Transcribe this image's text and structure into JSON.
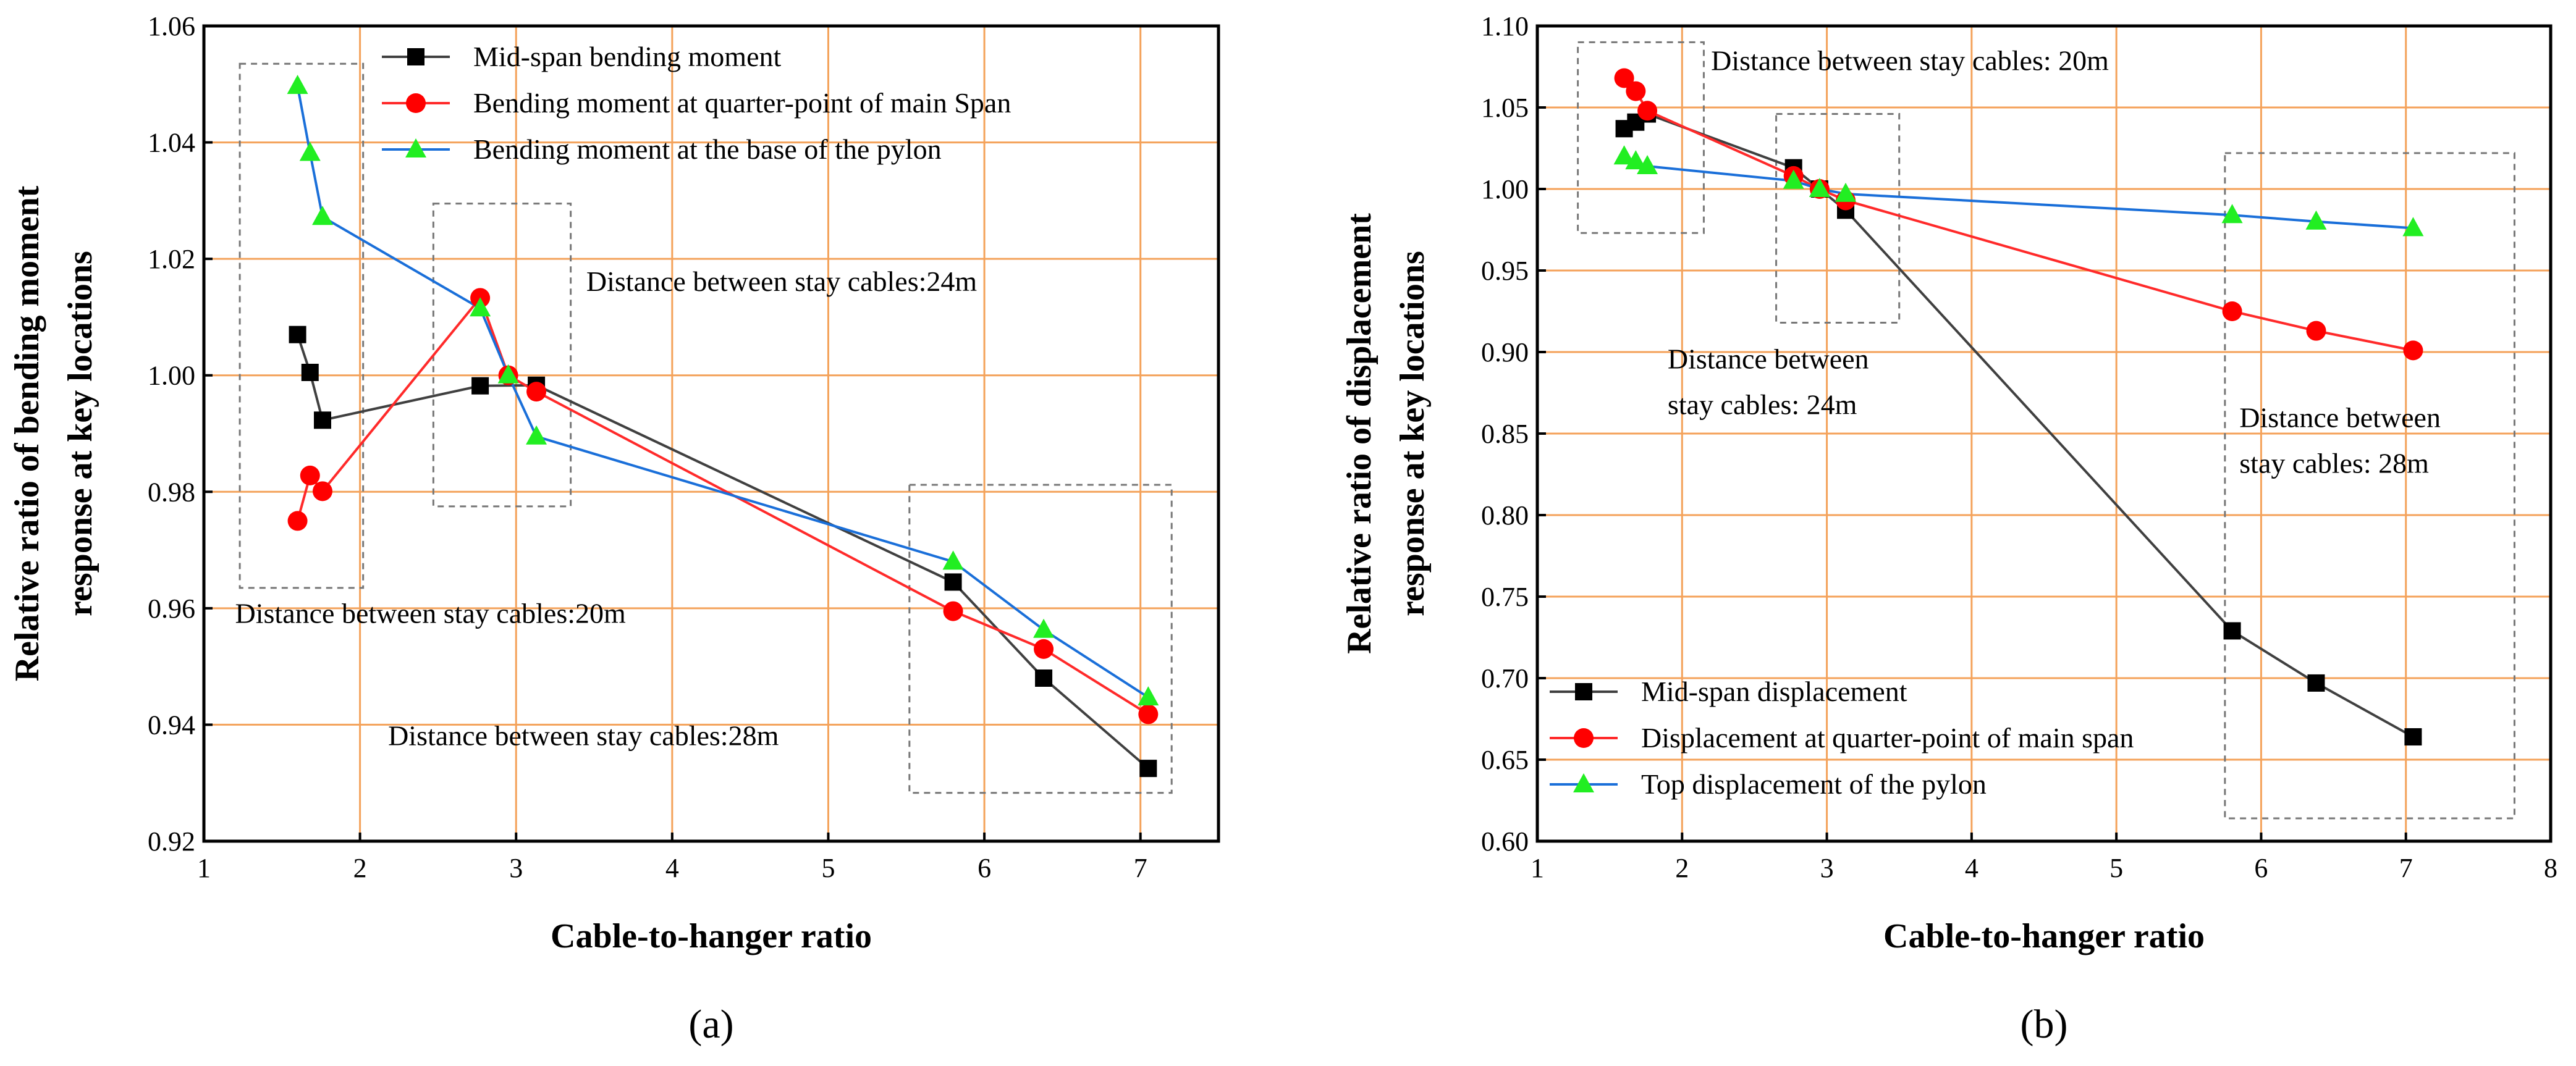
{
  "chart_data": [
    {
      "type": "line",
      "panel_label": "(a)",
      "xlabel": "Cable-to-hanger ratio",
      "ylabel_lines": [
        "Relative ratio of bending moment",
        "response at key locations"
      ],
      "xlim": [
        1,
        7.5
      ],
      "ylim": [
        0.92,
        1.06
      ],
      "x_ticks": [
        1,
        2,
        3,
        4,
        5,
        6,
        7
      ],
      "x_tick_labels": [
        "1",
        "2",
        "3",
        "4",
        "5",
        "6",
        "7"
      ],
      "y_ticks": [
        0.92,
        0.94,
        0.96,
        0.98,
        1.0,
        1.02,
        1.04,
        1.06
      ],
      "y_tick_labels": [
        "0.92",
        "0.94",
        "0.96",
        "0.98",
        "1.00",
        "1.02",
        "1.04",
        "1.06"
      ],
      "grid": true,
      "legend_position": "top-center",
      "series": [
        {
          "name": "Mid-span bending moment",
          "color": "#404040",
          "marker": "square",
          "marker_color": "#000000",
          "x": [
            1.6,
            1.68,
            1.76,
            2.77,
            3.13,
            5.8,
            6.38,
            7.05
          ],
          "y": [
            1.007,
            1.0005,
            0.9923,
            0.9982,
            0.9983,
            0.9645,
            0.948,
            0.9325
          ]
        },
        {
          "name": "Bending moment at quarter-point of main Span",
          "color": "#ff2a2a",
          "marker": "circle",
          "marker_color": "#ff0000",
          "x": [
            1.6,
            1.68,
            1.76,
            2.77,
            2.95,
            3.13,
            5.8,
            6.38,
            7.05
          ],
          "y": [
            0.975,
            0.9828,
            0.9801,
            1.0133,
            1.0,
            0.9972,
            0.9595,
            0.953,
            0.9418
          ]
        },
        {
          "name": "Bending moment at the base of the pylon",
          "color": "#1a6fd9",
          "marker": "triangle",
          "marker_color": "#22ee22",
          "x": [
            1.6,
            1.68,
            1.76,
            2.77,
            2.95,
            3.13,
            5.8,
            6.38,
            7.05
          ],
          "y": [
            1.0497,
            1.0382,
            1.0272,
            1.0115,
            1.0,
            0.9895,
            0.968,
            0.9563,
            0.9447
          ]
        }
      ],
      "annotation_boxes": [
        {
          "x": [
            1.23,
            2.02
          ],
          "y": [
            0.9635,
            1.0535
          ]
        },
        {
          "x": [
            2.47,
            3.35
          ],
          "y": [
            0.9775,
            1.0295
          ]
        },
        {
          "x": [
            5.52,
            7.2
          ],
          "y": [
            0.9283,
            0.9812
          ]
        }
      ],
      "annotations": [
        {
          "text": "Distance between stay cables:24m",
          "x": 3.45,
          "y": 1.0145
        },
        {
          "text": "Distance between stay cables:20m",
          "x": 1.2,
          "y": 0.9575
        },
        {
          "text": "Distance between stay cables:28m",
          "x": 2.18,
          "y": 0.9365
        }
      ]
    },
    {
      "type": "line",
      "panel_label": "(b)",
      "xlabel": "Cable-to-hanger ratio",
      "ylabel_lines": [
        "Relative ratio of displacement",
        "response at key locations"
      ],
      "xlim": [
        1,
        8
      ],
      "ylim": [
        0.6,
        1.1
      ],
      "x_ticks": [
        1,
        2,
        3,
        4,
        5,
        6,
        7,
        8
      ],
      "x_tick_labels": [
        "1",
        "2",
        "3",
        "4",
        "5",
        "6",
        "7",
        "8"
      ],
      "y_ticks": [
        0.6,
        0.65,
        0.7,
        0.75,
        0.8,
        0.85,
        0.9,
        0.95,
        1.0,
        1.05,
        1.1
      ],
      "y_tick_labels": [
        "0.60",
        "0.65",
        "0.70",
        "0.75",
        "0.80",
        "0.85",
        "0.90",
        "0.95",
        "1.00",
        "1.05",
        "1.10"
      ],
      "grid": true,
      "legend_position": "bottom-left",
      "series": [
        {
          "name": "Mid-span displacement",
          "color": "#404040",
          "marker": "square",
          "marker_color": "#000000",
          "x": [
            1.6,
            1.68,
            1.76,
            2.77,
            2.95,
            3.13,
            5.8,
            6.38,
            7.05
          ],
          "y": [
            1.037,
            1.041,
            1.046,
            1.013,
            1.0,
            0.987,
            0.729,
            0.697,
            0.664
          ]
        },
        {
          "name": "Displacement at quarter-point of main span",
          "color": "#ff2a2a",
          "marker": "circle",
          "marker_color": "#ff0000",
          "x": [
            1.6,
            1.68,
            1.76,
            2.77,
            2.95,
            3.13,
            5.8,
            6.38,
            7.05
          ],
          "y": [
            1.068,
            1.06,
            1.048,
            1.008,
            1.0,
            0.993,
            0.925,
            0.913,
            0.901
          ]
        },
        {
          "name": "Top displacement of the pylon",
          "color": "#1a6fd9",
          "marker": "triangle",
          "marker_color": "#22ee22",
          "x": [
            1.6,
            1.68,
            1.76,
            2.77,
            2.95,
            3.13,
            5.8,
            6.38,
            7.05
          ],
          "y": [
            1.02,
            1.017,
            1.014,
            1.005,
            1.0,
            0.997,
            0.984,
            0.98,
            0.976
          ]
        }
      ],
      "annotation_boxes": [
        {
          "x": [
            1.28,
            2.15
          ],
          "y": [
            0.973,
            1.09
          ]
        },
        {
          "x": [
            2.65,
            3.5
          ],
          "y": [
            0.918,
            1.046
          ]
        },
        {
          "x": [
            5.75,
            7.75
          ],
          "y": [
            0.614,
            1.022
          ]
        }
      ],
      "annotations": [
        {
          "text": "Distance between stay cables: 20m",
          "x": 2.2,
          "y": 1.073
        },
        {
          "text": "Distance between",
          "x": 1.9,
          "y": 0.89
        },
        {
          "text": "stay cables: 24m",
          "x": 1.9,
          "y": 0.862
        },
        {
          "text": "Distance between",
          "x": 5.85,
          "y": 0.854
        },
        {
          "text": "stay cables: 28m",
          "x": 5.85,
          "y": 0.826
        }
      ]
    }
  ]
}
